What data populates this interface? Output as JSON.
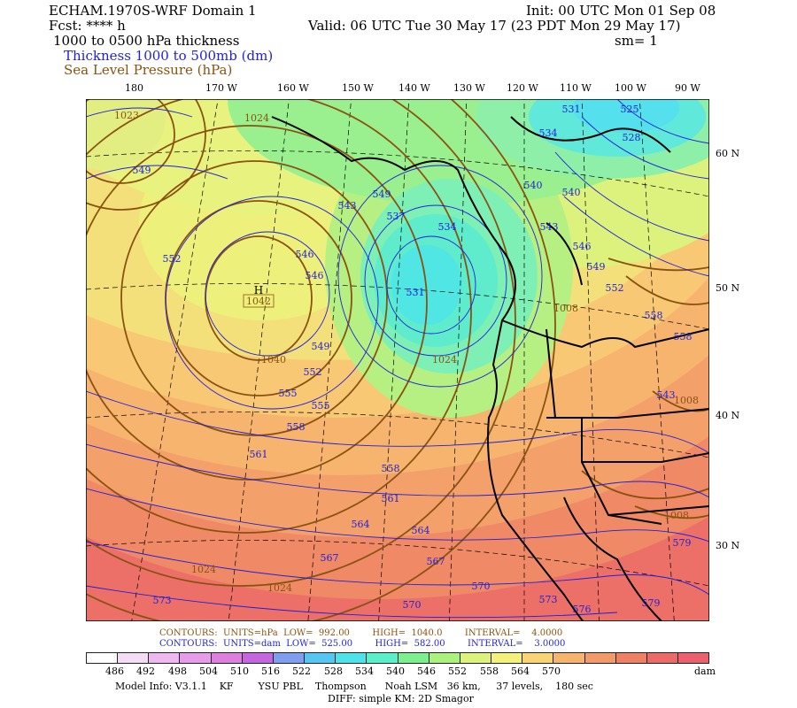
{
  "header": {
    "model": "ECHAM.1970S-WRF Domain 1",
    "init": "Init: 00 UTC Mon 01 Sep 08",
    "fcst": "Fcst: **** h",
    "valid": "Valid: 06 UTC Tue 30 May 17 (23 PDT Mon 29 May 17)",
    "thickness_label": "1000 to 0500 hPa thickness",
    "sm": "sm= 1",
    "legend_thickness": "Thickness 1000 to 500mb (dm)",
    "legend_slp": "Sea Level Pressure (hPa)"
  },
  "colors": {
    "thickness": "#1f1fd9",
    "slp": "#8a5210",
    "coast": "#000000"
  },
  "map": {
    "lon_labels": [
      "180",
      "170 W",
      "160 W",
      "150 W",
      "140 W",
      "130 W",
      "120 W",
      "110 W",
      "100 W",
      "90 W"
    ],
    "lat_labels": [
      "60 N",
      "50 N",
      "40 N",
      "30 N"
    ],
    "high_marker": "H",
    "high_value": "1042",
    "slp_labels": [
      "1024",
      "1040",
      "1024",
      "1024",
      "1024",
      "1008",
      "1008",
      "1008",
      "1023"
    ],
    "thickness_labels": [
      "549",
      "543",
      "546",
      "546",
      "552",
      "549",
      "552",
      "555",
      "555",
      "558",
      "561",
      "549",
      "537",
      "534",
      "531",
      "543",
      "546",
      "549",
      "552",
      "540",
      "540",
      "534",
      "531",
      "525",
      "528",
      "558",
      "558",
      "561",
      "564",
      "564",
      "567",
      "567",
      "570",
      "570",
      "573",
      "573",
      "576",
      "579",
      "579",
      "543",
      "558"
    ]
  },
  "contour_info": {
    "slp_line": "CONTOURS:  UNITS=hPa  LOW=  992.00        HIGH=  1040.0        INTERVAL=    4.0000",
    "thick_line": "CONTOURS:  UNITS=dam  LOW=  525.00        HIGH=  582.00        INTERVAL=    3.0000"
  },
  "colorbar": {
    "labels": [
      "486",
      "492",
      "498",
      "504",
      "510",
      "516",
      "522",
      "528",
      "534",
      "540",
      "546",
      "552",
      "558",
      "564",
      "570"
    ],
    "unit": "dam",
    "colors": [
      "#ffffff",
      "#f5dcf5",
      "#efb8ef",
      "#e89be8",
      "#de7ede",
      "#c466e0",
      "#7f9ef0",
      "#55c6f2",
      "#4de3ea",
      "#59f0c7",
      "#7cf08f",
      "#aaf27c",
      "#dcf27c",
      "#f4f07a",
      "#f8d474",
      "#f6b46c",
      "#f29a68",
      "#f08064",
      "#ee6a66",
      "#ec6070"
    ]
  },
  "footer": {
    "model_info": "Model Info: V3.1.1    KF        YSU PBL    Thompson      Noah LSM   36 km,     37 levels,    180 sec",
    "diff": "DIFF: simple KM: 2D Smagor"
  }
}
